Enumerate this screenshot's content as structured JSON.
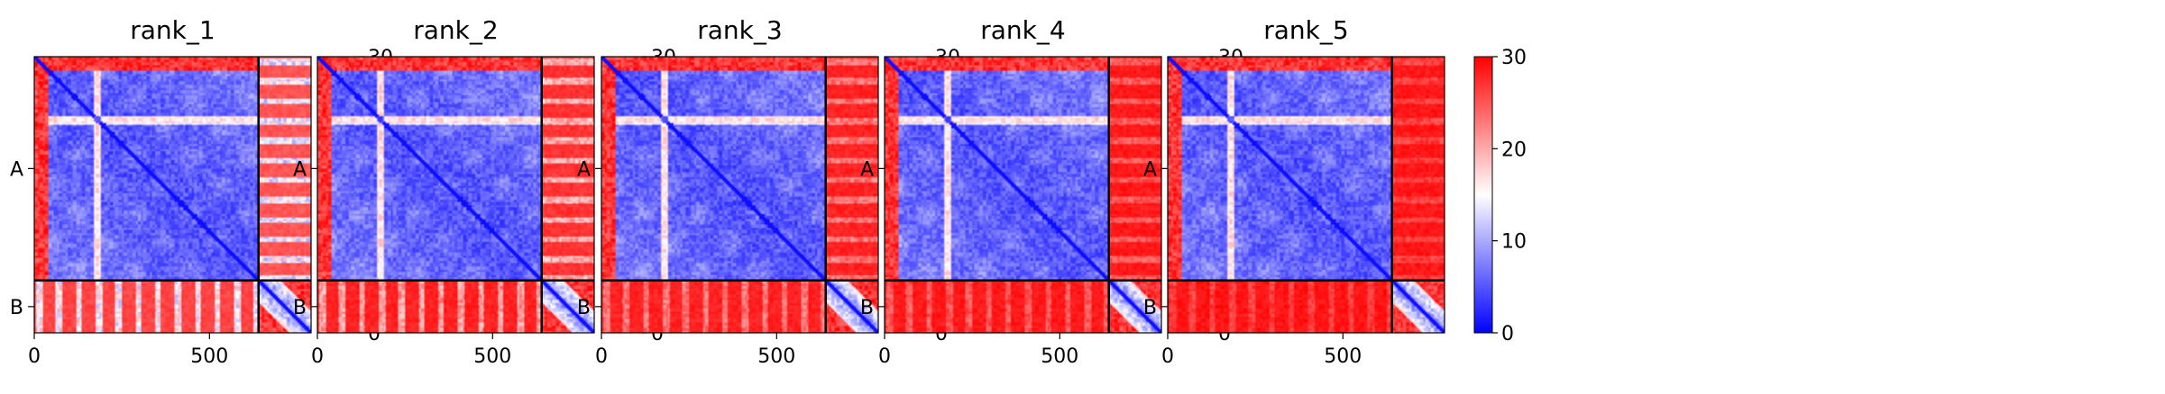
{
  "chart_data": {
    "type": "heatmap",
    "description_units": "residue index (PAE heatmaps, 0-30 scale)",
    "shared": {
      "colorbar": {
        "min": 0,
        "max": 30,
        "ticks": [
          "0",
          "10",
          "20",
          "30"
        ],
        "colors": [
          "#0000ff",
          "#ffffff",
          "#ff0000"
        ]
      },
      "xticks": [
        0,
        500
      ],
      "xtick_labels": [
        "0",
        "500"
      ],
      "xlim": [
        0,
        790
      ],
      "ylabels": [
        "A",
        "B"
      ],
      "chains": [
        {
          "name": "A",
          "start": 0,
          "end": 640
        },
        {
          "name": "B",
          "start": 640,
          "end": 790
        }
      ],
      "domain_boundaries": [
        40,
        180,
        640
      ],
      "grid": false
    },
    "panels": [
      {
        "title": "rank_1",
        "off_diag_AB": 27,
        "off_diag_BA": 26,
        "stripe_strength": 0.9
      },
      {
        "title": "rank_2",
        "off_diag_AB": 29,
        "off_diag_BA": 28,
        "stripe_strength": 0.6
      },
      {
        "title": "rank_3",
        "off_diag_AB": 29,
        "off_diag_BA": 29,
        "stripe_strength": 0.4
      },
      {
        "title": "rank_4",
        "off_diag_AB": 29.5,
        "off_diag_BA": 29.5,
        "stripe_strength": 0.3
      },
      {
        "title": "rank_5",
        "off_diag_AB": 29.8,
        "off_diag_BA": 29.6,
        "stripe_strength": 0.2
      }
    ]
  }
}
